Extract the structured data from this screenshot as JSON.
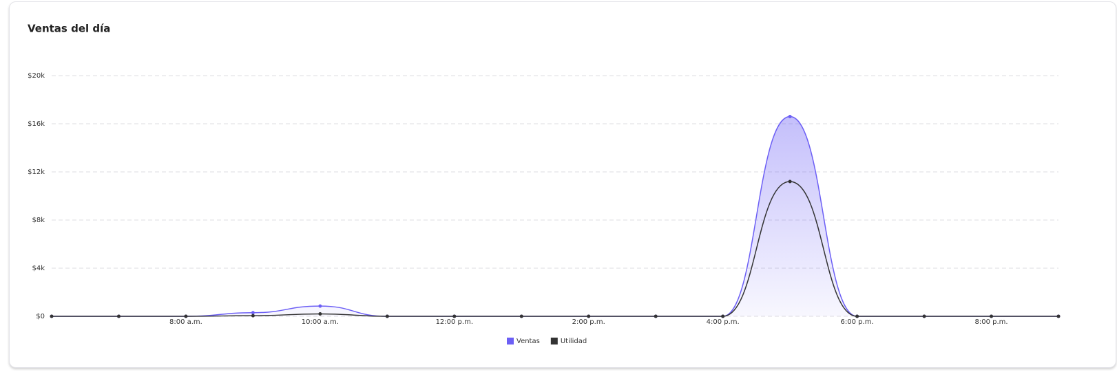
{
  "chart_data": {
    "type": "line",
    "title": "Ventas del día",
    "categories": [
      null,
      null,
      "8:00 a.m.",
      null,
      "10:00 a.m.",
      null,
      "12:00 p.m.",
      null,
      "2:00 p.m.",
      null,
      "4:00 p.m.",
      null,
      "6:00 p.m.",
      null,
      "8:00 p.m.",
      null
    ],
    "series": [
      {
        "name": "Ventas",
        "color": "#6c5ff5",
        "area": true,
        "values": [
          0,
          0,
          0,
          300,
          850,
          0,
          0,
          0,
          0,
          0,
          0,
          16600,
          0,
          0,
          0,
          0
        ]
      },
      {
        "name": "Utilidad",
        "color": "#333333",
        "area": false,
        "values": [
          0,
          0,
          0,
          50,
          200,
          0,
          0,
          0,
          0,
          0,
          0,
          11200,
          0,
          0,
          0,
          0
        ]
      }
    ],
    "ylim": [
      0,
      20000
    ],
    "yticks": [
      {
        "value": 0,
        "label": "$0"
      },
      {
        "value": 4000,
        "label": "$4k"
      },
      {
        "value": 8000,
        "label": "$8k"
      },
      {
        "value": 12000,
        "label": "$12k"
      },
      {
        "value": 16000,
        "label": "$16k"
      },
      {
        "value": 20000,
        "label": "$20k"
      }
    ],
    "grid": true,
    "legend": "bottom"
  }
}
